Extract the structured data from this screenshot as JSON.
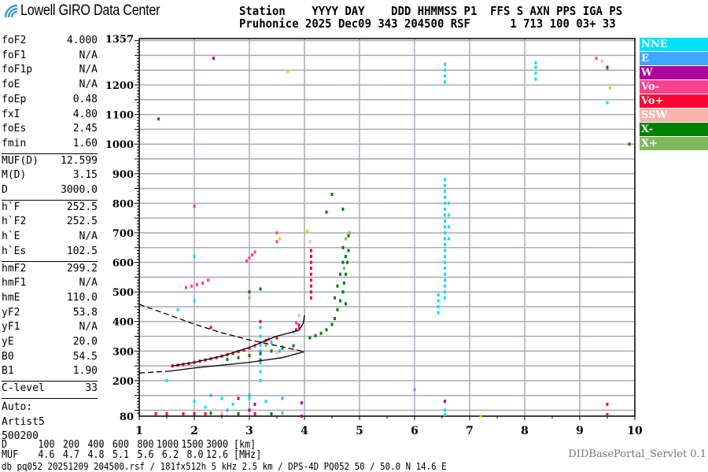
{
  "header": {
    "logo_text": "Lowell GIRO Data Center",
    "line1": "Station    YYYY DAY    DDD HHMMSS P1  FFS S AXN PPS IGA PS",
    "line2": "Pruhonice 2025 Dec09 343 204500 RSF      1 713 100 03+ 33"
  },
  "params": [
    {
      "k": "foF2",
      "v": "4.000"
    },
    {
      "k": "foF1",
      "v": "N/A"
    },
    {
      "k": "foF1p",
      "v": "N/A"
    },
    {
      "k": "foE",
      "v": "N/A"
    },
    {
      "k": "foEp",
      "v": "0.48"
    },
    {
      "k": "fxI",
      "v": "4.80"
    },
    {
      "k": "foEs",
      "v": "2.45"
    },
    {
      "k": "fmin",
      "v": "1.60"
    },
    {
      "k": "MUF(D)",
      "v": "12.599"
    },
    {
      "k": "M(D)",
      "v": "3.15"
    },
    {
      "k": "D",
      "v": "3000.0"
    },
    {
      "k": "h`F",
      "v": "252.5"
    },
    {
      "k": "h`F2",
      "v": "252.5"
    },
    {
      "k": "h`E",
      "v": "N/A"
    },
    {
      "k": "h`Es",
      "v": "102.5"
    },
    {
      "k": "hmF2",
      "v": "299.2"
    },
    {
      "k": "hmF1",
      "v": "N/A"
    },
    {
      "k": "hmE",
      "v": "110.0"
    },
    {
      "k": "yF2",
      "v": "53.8"
    },
    {
      "k": "yF1",
      "v": "N/A"
    },
    {
      "k": "yE",
      "v": "20.0"
    },
    {
      "k": "B0",
      "v": "54.5"
    },
    {
      "k": "B1",
      "v": "1.90"
    },
    {
      "k": "C-level",
      "v": "33"
    }
  ],
  "autoscaling": [
    "Auto:",
    "Artist5",
    "500200"
  ],
  "legend": [
    {
      "label": "NNE",
      "color": "#00e0ff"
    },
    {
      "label": "E",
      "color": "#40a8ff"
    },
    {
      "label": "W",
      "color": "#b0009c"
    },
    {
      "label": "Vo-",
      "color": "#ff4090"
    },
    {
      "label": "Vo+",
      "color": "#ff0030"
    },
    {
      "label": "SSW",
      "color": "#f8b4ac"
    },
    {
      "label": "X-",
      "color": "#008000"
    },
    {
      "label": "X+",
      "color": "#80b860"
    }
  ],
  "chart_data": {
    "type": "scatter",
    "xlim": [
      1,
      10
    ],
    "ylim": [
      80,
      1357
    ],
    "x_ticks": [
      "1",
      "2",
      "3",
      "4",
      "5",
      "6",
      "7",
      "8",
      "9",
      "10"
    ],
    "y_ticks": [
      "1357",
      "1200",
      "1100",
      "1000",
      "900",
      "800",
      "700",
      "600",
      "500",
      "400",
      "300",
      "200",
      "80"
    ],
    "grid": true,
    "model_curves": [
      {
        "style": "solid",
        "points": [
          [
            1.6,
            250
          ],
          [
            2.0,
            262
          ],
          [
            2.5,
            283
          ],
          [
            3.0,
            312
          ],
          [
            3.47,
            349
          ],
          [
            3.9,
            370
          ],
          [
            3.98,
            395
          ],
          [
            4.0,
            421
          ]
        ]
      },
      {
        "style": "solid",
        "points": [
          [
            1.54,
            232
          ],
          [
            2.0,
            243
          ],
          [
            3.0,
            262
          ],
          [
            3.6,
            278
          ],
          [
            4.0,
            298
          ]
        ]
      },
      {
        "style": "dashed",
        "points": [
          [
            1.0,
            226
          ],
          [
            1.54,
            232
          ]
        ]
      },
      {
        "style": "dashed",
        "points": [
          [
            1.0,
            458
          ],
          [
            1.5,
            425
          ],
          [
            2.0,
            391
          ],
          [
            2.5,
            362
          ],
          [
            3.0,
            338
          ],
          [
            3.5,
            318
          ],
          [
            4.0,
            298
          ]
        ]
      }
    ],
    "points": {
      "Vo+": [
        [
          1.6,
          250
        ],
        [
          1.7,
          252
        ],
        [
          1.8,
          255
        ],
        [
          1.9,
          258
        ],
        [
          2.0,
          262
        ],
        [
          2.1,
          266
        ],
        [
          2.2,
          270
        ],
        [
          2.3,
          274
        ],
        [
          2.4,
          278
        ],
        [
          2.5,
          283
        ],
        [
          2.6,
          288
        ],
        [
          2.7,
          292
        ],
        [
          2.8,
          298
        ],
        [
          2.9,
          303
        ],
        [
          3.0,
          310
        ],
        [
          3.1,
          318
        ],
        [
          3.2,
          328
        ],
        [
          3.3,
          336
        ],
        [
          3.5,
          345
        ],
        [
          3.85,
          372
        ],
        [
          3.9,
          388
        ],
        [
          4.12,
          480
        ],
        [
          4.12,
          500
        ],
        [
          4.12,
          520
        ],
        [
          4.12,
          540
        ],
        [
          4.12,
          560
        ],
        [
          4.12,
          580
        ],
        [
          4.12,
          600
        ],
        [
          4.12,
          620
        ],
        [
          4.12,
          640
        ],
        [
          2.05,
          525
        ],
        [
          2.3,
          380
        ],
        [
          1.3,
          88
        ],
        [
          1.5,
          88
        ],
        [
          1.8,
          88
        ],
        [
          2.0,
          88
        ],
        [
          2.2,
          88
        ],
        [
          2.5,
          88
        ],
        [
          3.1,
          88
        ],
        [
          9.5,
          85
        ],
        [
          9.5,
          120
        ]
      ],
      "Vo-": [
        [
          1.85,
          515
        ],
        [
          1.95,
          520
        ],
        [
          2.05,
          525
        ],
        [
          2.15,
          530
        ],
        [
          2.25,
          540
        ],
        [
          2.95,
          605
        ],
        [
          3.0,
          615
        ],
        [
          3.05,
          625
        ],
        [
          3.1,
          635
        ],
        [
          3.5,
          700
        ],
        [
          3.5,
          670
        ],
        [
          3.85,
          395
        ],
        [
          3.9,
          380
        ],
        [
          3.1,
          320
        ],
        [
          3.35,
          340
        ],
        [
          9.3,
          1290
        ],
        [
          2.0,
          790
        ]
      ],
      "NNE": [
        [
          6.55,
          480
        ],
        [
          6.55,
          500
        ],
        [
          6.55,
          520
        ],
        [
          6.55,
          540
        ],
        [
          6.55,
          560
        ],
        [
          6.55,
          580
        ],
        [
          6.55,
          600
        ],
        [
          6.55,
          620
        ],
        [
          6.55,
          640
        ],
        [
          6.55,
          660
        ],
        [
          6.55,
          680
        ],
        [
          6.55,
          700
        ],
        [
          6.55,
          720
        ],
        [
          6.55,
          740
        ],
        [
          6.55,
          760
        ],
        [
          6.55,
          780
        ],
        [
          6.55,
          800
        ],
        [
          6.55,
          820
        ],
        [
          6.55,
          840
        ],
        [
          6.55,
          860
        ],
        [
          6.55,
          880
        ],
        [
          6.62,
          680
        ],
        [
          6.62,
          720
        ],
        [
          6.62,
          760
        ],
        [
          6.62,
          800
        ],
        [
          6.43,
          430
        ],
        [
          6.43,
          450
        ],
        [
          6.43,
          470
        ],
        [
          6.43,
          490
        ],
        [
          6.55,
          1210
        ],
        [
          6.55,
          1230
        ],
        [
          6.55,
          1250
        ],
        [
          6.55,
          1270
        ],
        [
          8.2,
          1220
        ],
        [
          8.2,
          1240
        ],
        [
          8.2,
          1260
        ],
        [
          8.2,
          1275
        ],
        [
          9.5,
          1140
        ],
        [
          3.2,
          200
        ],
        [
          3.2,
          230
        ],
        [
          3.2,
          260
        ],
        [
          3.2,
          290
        ],
        [
          3.2,
          320
        ],
        [
          3.2,
          350
        ],
        [
          1.7,
          440
        ],
        [
          2.0,
          620
        ],
        [
          2.0,
          470
        ],
        [
          1.5,
          200
        ],
        [
          2.0,
          130
        ],
        [
          2.2,
          110
        ],
        [
          2.5,
          140
        ],
        [
          2.7,
          120
        ],
        [
          3.0,
          140
        ],
        [
          3.3,
          130
        ],
        [
          6.55,
          100
        ],
        [
          6.55,
          85
        ]
      ],
      "E": [
        [
          3.2,
          380
        ],
        [
          3.2,
          300
        ],
        [
          3.4,
          330
        ],
        [
          3.55,
          300
        ],
        [
          3.8,
          365
        ],
        [
          2.3,
          150
        ],
        [
          2.6,
          100
        ],
        [
          3.0,
          150
        ],
        [
          6.0,
          170
        ],
        [
          9.5,
          1255
        ],
        [
          3.6,
          140
        ]
      ],
      "W": [
        [
          2.35,
          1290
        ],
        [
          3.2,
          400
        ],
        [
          3.2,
          270
        ],
        [
          2.8,
          140
        ],
        [
          3.1,
          120
        ],
        [
          3.95,
          80
        ],
        [
          3.95,
          125
        ],
        [
          9.5,
          1260
        ],
        [
          6.55,
          130
        ],
        [
          3.0,
          100
        ]
      ],
      "SSW": [
        [
          3.9,
          420
        ],
        [
          3.85,
          300
        ],
        [
          3.5,
          295
        ],
        [
          2.8,
          150
        ],
        [
          2.5,
          90
        ],
        [
          4.1,
          670
        ],
        [
          9.4,
          1280
        ]
      ],
      "X-": [
        [
          2.6,
          272
        ],
        [
          2.8,
          278
        ],
        [
          3.0,
          285
        ],
        [
          3.2,
          292
        ],
        [
          3.4,
          300
        ],
        [
          3.6,
          310
        ],
        [
          3.8,
          318
        ],
        [
          4.1,
          345
        ],
        [
          4.2,
          352
        ],
        [
          4.3,
          360
        ],
        [
          4.4,
          372
        ],
        [
          4.5,
          390
        ],
        [
          4.55,
          410
        ],
        [
          4.6,
          440
        ],
        [
          4.65,
          470
        ],
        [
          4.7,
          500
        ],
        [
          4.72,
          530
        ],
        [
          4.75,
          560
        ],
        [
          4.78,
          600
        ],
        [
          4.8,
          640
        ],
        [
          4.8,
          690
        ],
        [
          4.7,
          600
        ],
        [
          4.7,
          650
        ],
        [
          4.6,
          520
        ],
        [
          4.55,
          480
        ],
        [
          4.65,
          560
        ],
        [
          4.75,
          460
        ],
        [
          4.75,
          620
        ],
        [
          4.7,
          780
        ],
        [
          4.5,
          830
        ],
        [
          4.4,
          770
        ],
        [
          1.35,
          1085
        ],
        [
          9.9,
          1000
        ],
        [
          2.3,
          90
        ],
        [
          2.8,
          88
        ],
        [
          3.4,
          88
        ],
        [
          3.0,
          500
        ],
        [
          3.2,
          510
        ]
      ],
      "X+": [
        [
          4.82,
          700
        ],
        [
          4.75,
          680
        ],
        [
          3.3,
          320
        ],
        [
          3.6,
          315
        ],
        [
          4.72,
          580
        ],
        [
          3.0,
          480
        ],
        [
          3.6,
          90
        ]
      ],
      "other": [
        [
          3.7,
          1245
        ],
        [
          3.55,
          680
        ],
        [
          4.05,
          705
        ],
        [
          9.55,
          1190
        ],
        [
          7.2,
          80
        ]
      ]
    }
  },
  "bottom": {
    "d_label": "D",
    "d_values": [
      "100",
      "200",
      "400",
      "600",
      "800",
      "1000",
      "1500",
      "3000"
    ],
    "d_unit": "[km]",
    "muf_label": "MUF",
    "muf_values": [
      "4.6",
      "4.7",
      "4.8",
      "5.1",
      "5.6",
      "6.2",
      "8.0",
      "12.6"
    ],
    "muf_unit": "[MHz]",
    "footer": "db pq052 20251209 204500.rsf / 181fx512h 5 kHz 2.5 km / DPS-4D PQ052 50 / 50.0 N 14.6 E",
    "servlet": "DIDBasePortal_Servlet 0.1"
  }
}
